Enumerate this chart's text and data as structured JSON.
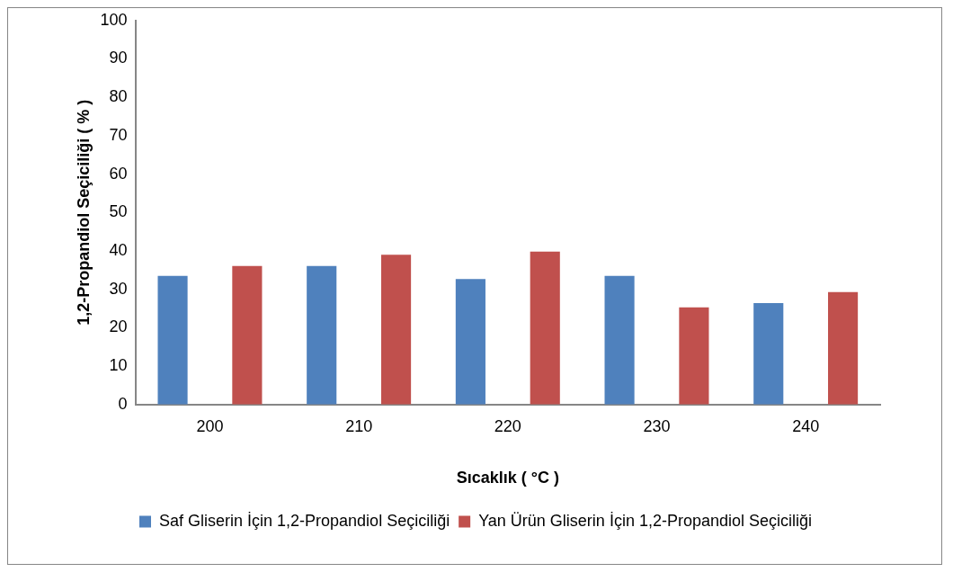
{
  "chart_data": {
    "type": "bar",
    "xlabel": "Sıcaklık ( °C )",
    "ylabel": "1,2-Propandiol Seçiciliği ( % )",
    "categories": [
      "200",
      "210",
      "220",
      "230",
      "240"
    ],
    "series": [
      {
        "name": "Saf Gliserin İçin 1,2-Propandiol Seçiciliği",
        "color": "#4f81bd",
        "values": [
          33.5,
          36.1,
          32.7,
          33.5,
          26.4
        ]
      },
      {
        "name": "Yan Ürün Gliserin İçin 1,2-Propandiol Seçiciliği",
        "color": "#c0504d",
        "values": [
          36.1,
          39.0,
          39.8,
          25.3,
          29.3
        ]
      }
    ],
    "ylim": [
      0,
      100
    ],
    "yticks": [
      0,
      10,
      20,
      30,
      40,
      50,
      60,
      70,
      80,
      90,
      100
    ],
    "grid": false,
    "legend": "bottom"
  }
}
